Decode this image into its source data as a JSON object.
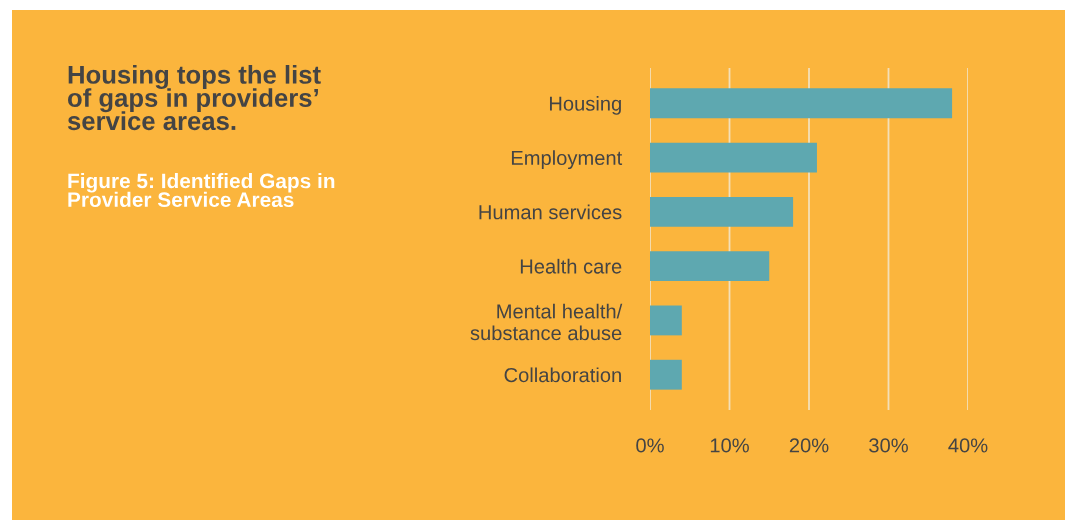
{
  "chart_data": {
    "type": "bar",
    "orientation": "horizontal",
    "title": "Housing tops the list\nof gaps in providers’\nservice areas.",
    "subtitle": "Figure 5: Identified Gaps in\nProvider Service Areas",
    "categories": [
      "Housing",
      "Employment",
      "Human services",
      "Health care",
      "Mental health/\nsubstance abuse",
      "Collaboration"
    ],
    "values": [
      38,
      21,
      18,
      15,
      4,
      4
    ],
    "color": "#5ea8b0",
    "xlim": [
      0,
      40
    ],
    "xticks": [
      {
        "value": 0,
        "label": "0%"
      },
      {
        "value": 10,
        "label": "10%"
      },
      {
        "value": 20,
        "label": "20%"
      },
      {
        "value": 30,
        "label": "30%"
      },
      {
        "value": 40,
        "label": "40%"
      }
    ],
    "grid": "x"
  }
}
